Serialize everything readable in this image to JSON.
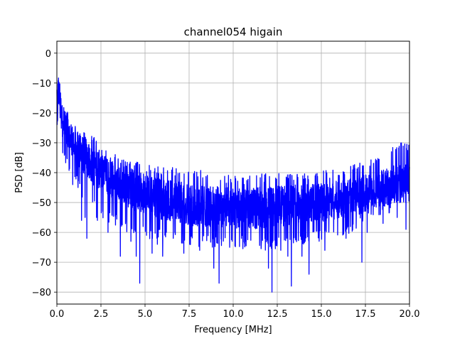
{
  "chart_data": {
    "type": "line",
    "title": "channel054 higain",
    "xlabel": "Frequency [MHz]",
    "ylabel": "PSD [dB]",
    "xlim": [
      0,
      20
    ],
    "ylim": [
      -84,
      4
    ],
    "xticks": [
      0,
      2.5,
      5,
      7.5,
      10,
      12.5,
      15,
      17.5,
      20
    ],
    "xtick_labels": [
      "0.0",
      "2.5",
      "5.0",
      "7.5",
      "10.0",
      "12.5",
      "15.0",
      "17.5",
      "20.0"
    ],
    "yticks": [
      0,
      -10,
      -20,
      -30,
      -40,
      -50,
      -60,
      -70,
      -80
    ],
    "ytick_labels": [
      "0",
      "−10",
      "−20",
      "−30",
      "−40",
      "−50",
      "−60",
      "−70",
      "−80"
    ],
    "grid": true,
    "series": [
      {
        "color": "#0000ff",
        "x": [
          0,
          0.1,
          0.2,
          0.3,
          0.5,
          0.75,
          1,
          1.5,
          2,
          2.5,
          3,
          3.5,
          4,
          5,
          6,
          7,
          8,
          9,
          10,
          11,
          12,
          13,
          14,
          15,
          16,
          17,
          17.5,
          18,
          18.5,
          19,
          19.5,
          20
        ],
        "y": [
          -15,
          -12,
          -18,
          -22,
          -25,
          -28,
          -31,
          -34,
          -37,
          -40,
          -42,
          -44,
          -45,
          -47,
          -49,
          -50,
          -51,
          -51.5,
          -52,
          -52,
          -51.5,
          -51,
          -50.5,
          -50,
          -49,
          -48,
          -47,
          -46,
          -45,
          -44,
          -43,
          -42
        ],
        "upper": [
          -5,
          -7,
          -10,
          -12,
          -18,
          -22,
          -24,
          -26,
          -27,
          -32,
          -33,
          -34,
          -35,
          -37,
          -38,
          -38.5,
          -39,
          -40,
          -41,
          -41,
          -40,
          -40,
          -40,
          -39,
          -39,
          -37,
          -35,
          -35,
          -32,
          -30,
          -29,
          -30
        ],
        "lower": [
          -25,
          -25,
          -30,
          -33,
          -37,
          -40,
          -43,
          -50,
          -52,
          -55,
          -57,
          -58,
          -60,
          -62,
          -63,
          -64,
          -65,
          -65,
          -66,
          -66,
          -66,
          -65,
          -64,
          -63,
          -62,
          -60,
          -58,
          -56,
          -55,
          -53,
          -50,
          -50
        ],
        "dips": [
          [
            0.9,
            -44
          ],
          [
            1.2,
            -45
          ],
          [
            1.4,
            -56
          ],
          [
            1.6,
            -55
          ],
          [
            1.7,
            -62
          ],
          [
            2.25,
            -55
          ],
          [
            2.3,
            -56
          ],
          [
            2.9,
            -60
          ],
          [
            3.6,
            -68
          ],
          [
            4.2,
            -63
          ],
          [
            4.5,
            -68
          ],
          [
            4.7,
            -77
          ],
          [
            5.4,
            -67
          ],
          [
            5.7,
            -64
          ],
          [
            6.0,
            -68
          ],
          [
            6.6,
            -62
          ],
          [
            7.2,
            -67
          ],
          [
            8.1,
            -66
          ],
          [
            8.9,
            -72
          ],
          [
            9.2,
            -77
          ],
          [
            9.8,
            -65
          ],
          [
            10.5,
            -61
          ],
          [
            12.0,
            -72
          ],
          [
            12.2,
            -80
          ],
          [
            12.7,
            -66
          ],
          [
            13.1,
            -68
          ],
          [
            13.3,
            -78
          ],
          [
            13.9,
            -68
          ],
          [
            14.3,
            -74
          ],
          [
            15.2,
            -66
          ],
          [
            16.4,
            -62
          ],
          [
            17.3,
            -70
          ],
          [
            17.6,
            -60
          ],
          [
            18.5,
            -57
          ],
          [
            19.3,
            -55
          ],
          [
            19.8,
            -59
          ]
        ]
      }
    ]
  }
}
